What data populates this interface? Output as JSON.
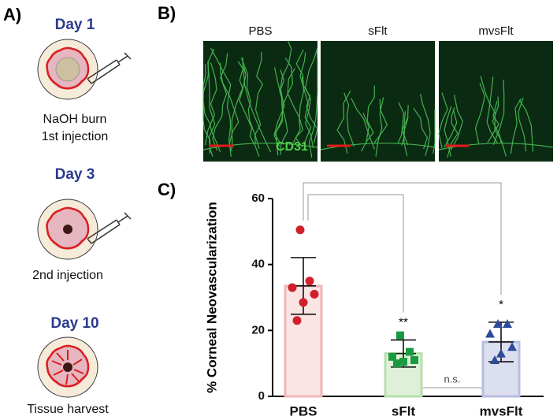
{
  "panel_a": {
    "label": "A)",
    "steps": [
      {
        "day": "Day 1",
        "lines": [
          "NaOH burn",
          "1st injection"
        ]
      },
      {
        "day": "Day 3",
        "lines": [
          "2nd injection"
        ]
      },
      {
        "day": "Day 10",
        "lines": [
          "Tissue harvest"
        ]
      }
    ]
  },
  "panel_b": {
    "label": "B)",
    "images": [
      "PBS",
      "sFlt",
      "mvsFlt"
    ],
    "stain": "CD31"
  },
  "chart_data": {
    "type": "bar",
    "panel_label": "C)",
    "y_label": "% Corneal Neovascularization",
    "categories": [
      "PBS",
      "sFlt",
      "mvsFlt"
    ],
    "values": [
      33.5,
      13,
      16.5
    ],
    "error": [
      8.6,
      4.1,
      6
    ],
    "points": [
      [
        50.5,
        35,
        33,
        31,
        28.5,
        23
      ],
      [
        18.5,
        13.5,
        12,
        11,
        10.5,
        10
      ],
      [
        22,
        22,
        19,
        15,
        13,
        11
      ]
    ],
    "colors": [
      "#d0202a",
      "#1a9a40",
      "#2e4a9a"
    ],
    "bar_colors": [
      "#fbe4e4",
      "#dff0d8",
      "#dcdff0"
    ],
    "edge_colors": [
      "#f2b6b6",
      "#b7dfae",
      "#b8bde0"
    ],
    "markers": [
      "circle",
      "square",
      "triangle"
    ],
    "significance": [
      "**",
      "*",
      "n.s."
    ],
    "ylim": [
      0,
      60
    ],
    "yticks": [
      0,
      20,
      40,
      60
    ]
  }
}
